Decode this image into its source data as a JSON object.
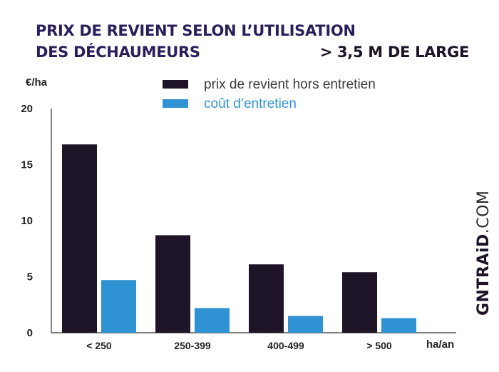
{
  "title": "PRIX DE REVIENT SELON L’UTILISATION DES DÉCHAUMEURS",
  "title_line1": "PRIX DE REVIENT SELON L’UTILISATION",
  "title_line2": "DES DÉCHAUMEURS",
  "subtitle": "> 3,5 M DE LARGE",
  "watermark": {
    "brand": "GNTRAiD",
    "suffix": ".COM"
  },
  "colors": {
    "title": "#2a1f5c",
    "series_dark": "#1e1428",
    "series_blue": "#2f93d3",
    "axis": "#333333",
    "text": "#222222"
  },
  "chart_data": {
    "type": "bar",
    "categories": [
      "< 250",
      "250-399",
      "400-499",
      "> 500"
    ],
    "series": [
      {
        "name": "prix de revient hors entretien",
        "color": "#1e1428",
        "values": [
          16.8,
          8.7,
          6.1,
          5.4
        ]
      },
      {
        "name": "coût d’entretien",
        "color": "#2f93d3",
        "values": [
          4.7,
          2.2,
          1.5,
          1.3
        ]
      }
    ],
    "ylabel": "€/ha",
    "xlabel": "ha/an",
    "ylim": [
      0,
      20
    ],
    "yticks": [
      0,
      5,
      10,
      15,
      20
    ],
    "grid": false,
    "legend_position": "top"
  }
}
